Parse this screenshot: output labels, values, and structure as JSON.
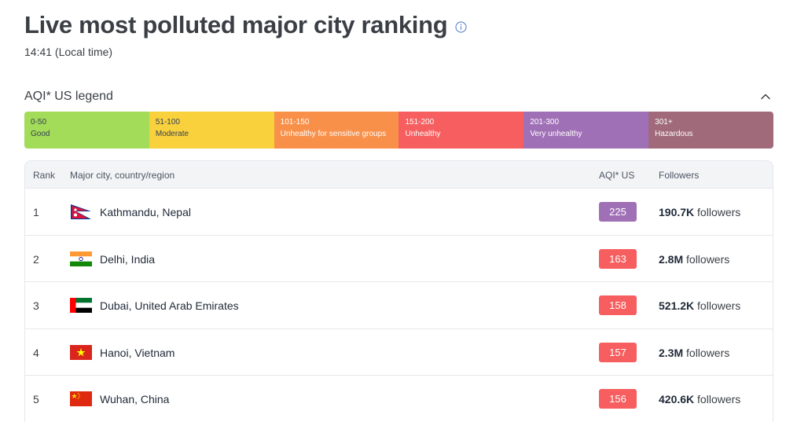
{
  "header": {
    "title": "Live most polluted major city ranking",
    "subtitle": "14:41 (Local time)",
    "info_icon": "info-icon"
  },
  "legend": {
    "title": "AQI* US legend",
    "toggle_icon": "chevron-up-icon",
    "segments": [
      {
        "range": "0-50",
        "label": "Good",
        "color": "#a3dc58",
        "text_color": "#374151"
      },
      {
        "range": "51-100",
        "label": "Moderate",
        "color": "#f8d13d",
        "text_color": "#374151"
      },
      {
        "range": "101-150",
        "label": "Unhealthy for sensitive groups",
        "color": "#f99049",
        "text_color": "#ffffff"
      },
      {
        "range": "151-200",
        "label": "Unhealthy",
        "color": "#f65e5f",
        "text_color": "#ffffff"
      },
      {
        "range": "201-300",
        "label": "Very unhealthy",
        "color": "#a070b6",
        "text_color": "#ffffff"
      },
      {
        "range": "301+",
        "label": "Hazardous",
        "color": "#a06a7b",
        "text_color": "#ffffff"
      }
    ]
  },
  "table": {
    "columns": {
      "rank": "Rank",
      "city": "Major city, country/region",
      "aqi": "AQI* US",
      "followers": "Followers"
    },
    "rows": [
      {
        "rank": "1",
        "city": "Kathmandu, Nepal",
        "flag": "nepal-flag-icon",
        "aqi": "225",
        "aqi_color": "#a070b6",
        "followers_count": "190.7K",
        "followers_suffix": " followers"
      },
      {
        "rank": "2",
        "city": "Delhi, India",
        "flag": "india-flag-icon",
        "aqi": "163",
        "aqi_color": "#f65e5f",
        "followers_count": "2.8M",
        "followers_suffix": " followers"
      },
      {
        "rank": "3",
        "city": "Dubai, United Arab Emirates",
        "flag": "uae-flag-icon",
        "aqi": "158",
        "aqi_color": "#f65e5f",
        "followers_count": "521.2K",
        "followers_suffix": " followers"
      },
      {
        "rank": "4",
        "city": "Hanoi, Vietnam",
        "flag": "vietnam-flag-icon",
        "aqi": "157",
        "aqi_color": "#f65e5f",
        "followers_count": "2.3M",
        "followers_suffix": " followers"
      },
      {
        "rank": "5",
        "city": "Wuhan, China",
        "flag": "china-flag-icon",
        "aqi": "156",
        "aqi_color": "#f65e5f",
        "followers_count": "420.6K",
        "followers_suffix": " followers"
      }
    ]
  }
}
